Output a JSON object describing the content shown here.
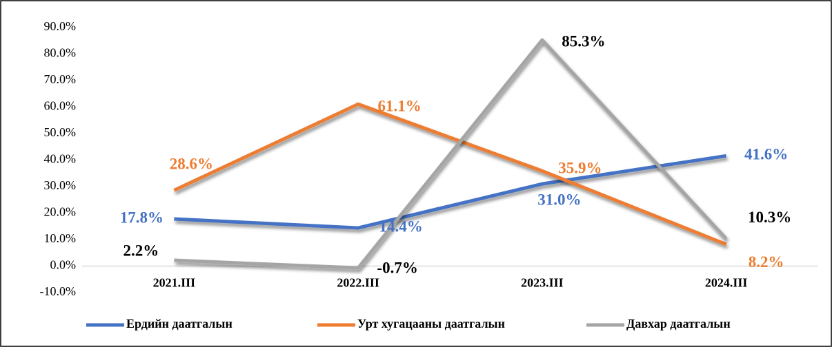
{
  "chart_data": {
    "type": "line",
    "categories": [
      "2021.III",
      "2022.III",
      "2023.III",
      "2024.III"
    ],
    "series": [
      {
        "name": "Ердийн даатгалын",
        "color": "#4472c4",
        "values": [
          17.8,
          14.4,
          31.0,
          41.6
        ],
        "value_labels": [
          "17.8%",
          "14.4%",
          "31.0%",
          "41.6%"
        ]
      },
      {
        "name": "Урт хугацааны даатгалын",
        "color": "#ed7d31",
        "values": [
          28.6,
          61.1,
          35.9,
          8.2
        ],
        "value_labels": [
          "28.6%",
          "61.1%",
          "35.9%",
          "8.2%"
        ]
      },
      {
        "name": "Давхар даатгалын",
        "color": "#a5a5a5",
        "values": [
          2.2,
          -0.7,
          85.3,
          10.3
        ],
        "value_labels": [
          "2.2%",
          "-0.7%",
          "85.3%",
          "10.3%"
        ]
      }
    ],
    "ylim": [
      -10,
      90
    ],
    "yticks": [
      {
        "value": -10,
        "label": "-10.0%"
      },
      {
        "value": 0,
        "label": "0.0%"
      },
      {
        "value": 10,
        "label": "10.0%"
      },
      {
        "value": 20,
        "label": "20.0%"
      },
      {
        "value": 30,
        "label": "30.0%"
      },
      {
        "value": 40,
        "label": "40.0%"
      },
      {
        "value": 50,
        "label": "50.0%"
      },
      {
        "value": 60,
        "label": "60.0%"
      },
      {
        "value": 70,
        "label": "70.0%"
      },
      {
        "value": 80,
        "label": "80.0%"
      },
      {
        "value": 90,
        "label": "90.0%"
      }
    ],
    "grid": false,
    "legend": "bottom"
  }
}
